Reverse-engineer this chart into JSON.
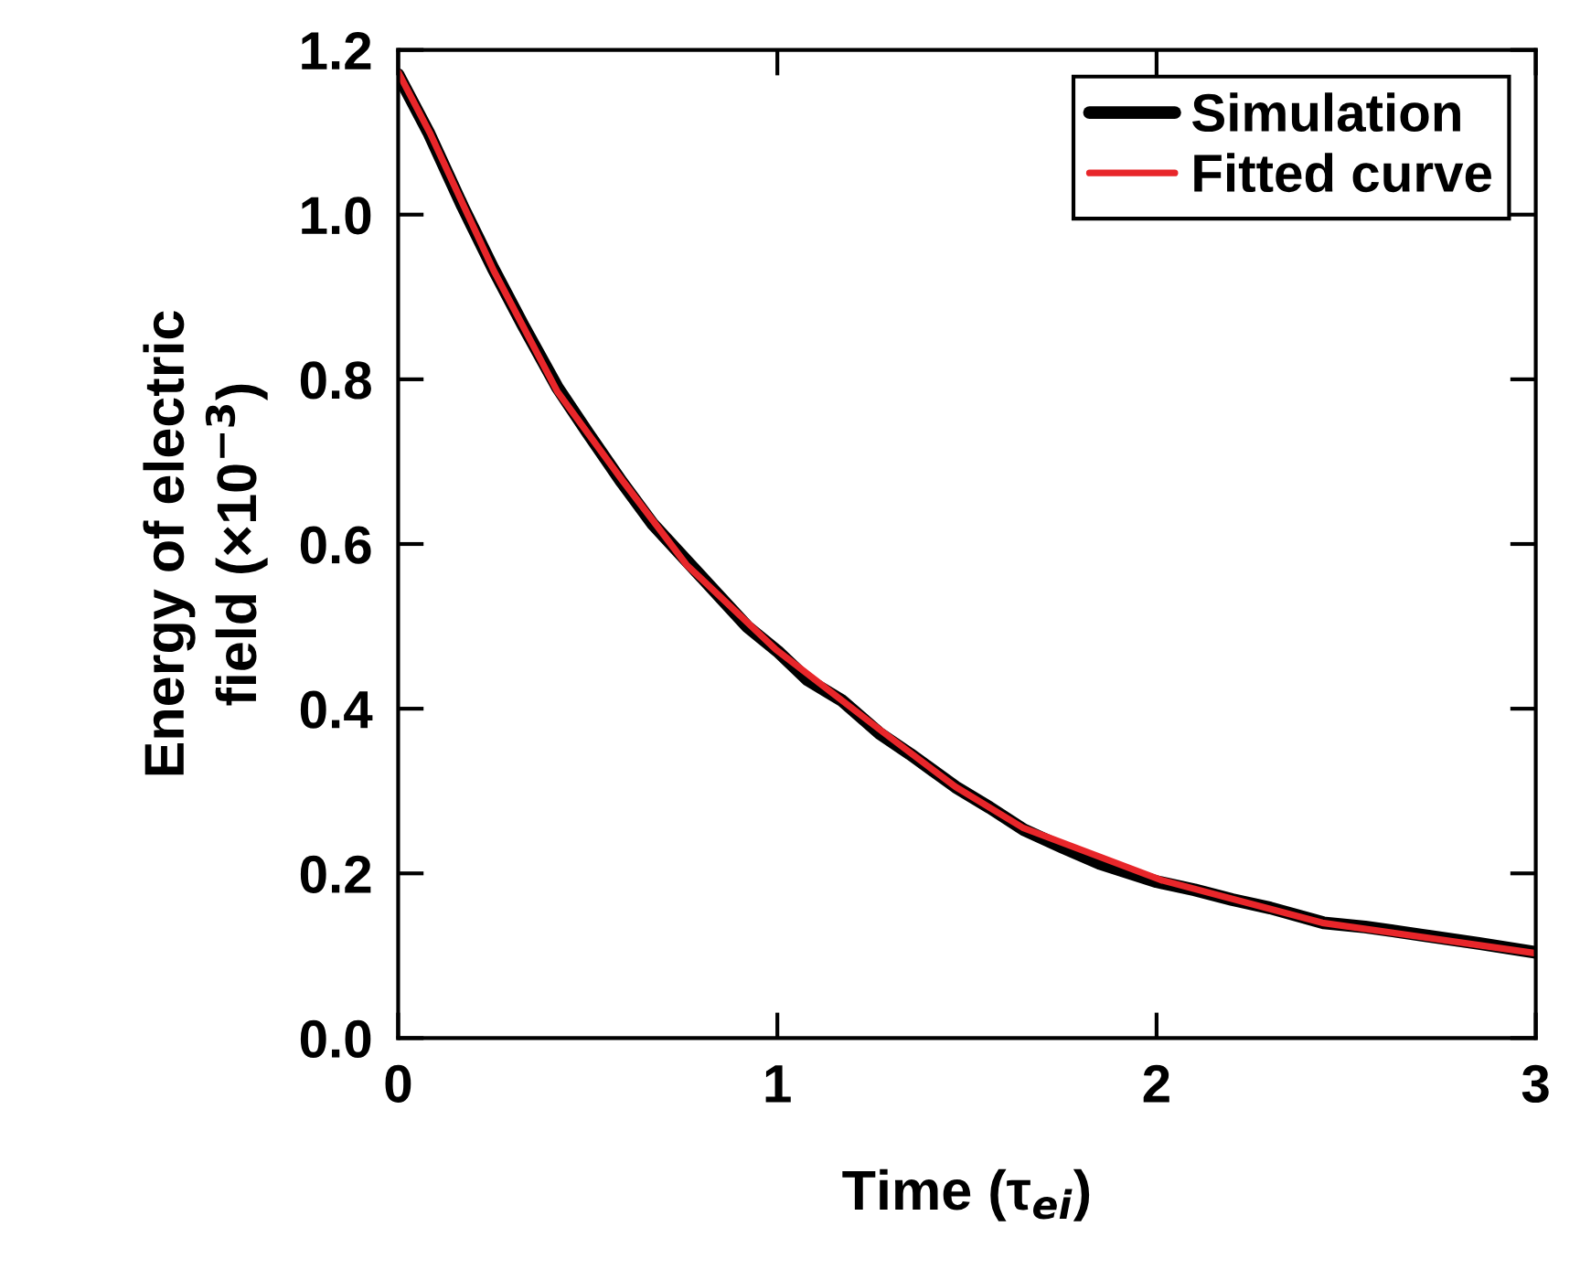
{
  "chart_data": {
    "type": "line",
    "xlabel": "Time (τ$_{ei}$)",
    "ylabel": "Energy of electric\nfield (×10$^{−3}$)",
    "xlim": [
      0,
      3
    ],
    "ylim": [
      0,
      1.2
    ],
    "xticks": [
      0,
      1,
      2,
      3
    ],
    "yticks": [
      {
        "value": 0,
        "label": "0.0"
      },
      0.2,
      0.4,
      0.6,
      0.8,
      {
        "value": 1,
        "label": "1.0"
      },
      1.2
    ],
    "grid": false,
    "legend": "top right",
    "marker": "none",
    "line_style": "solid",
    "series": [
      {
        "name": "Simulation",
        "color": "#000000",
        "x": [
          0,
          0.08,
          0.17,
          0.25,
          0.33,
          0.42,
          0.5,
          0.59,
          0.67,
          0.76,
          0.85,
          0.92,
          1.0,
          1.08,
          1.17,
          1.27,
          1.35,
          1.47,
          1.56,
          1.65,
          1.75,
          1.85,
          2.0,
          2.1,
          2.2,
          2.3,
          2.44,
          2.55,
          2.7,
          2.85,
          3.0
        ],
        "values": [
          1.17,
          1.1,
          1.01,
          0.935,
          0.865,
          0.79,
          0.735,
          0.675,
          0.625,
          0.58,
          0.535,
          0.5,
          0.47,
          0.435,
          0.41,
          0.37,
          0.345,
          0.305,
          0.28,
          0.253,
          0.232,
          0.212,
          0.19,
          0.18,
          0.168,
          0.158,
          0.14,
          0.135,
          0.125,
          0.115,
          0.104
        ]
      },
      {
        "name": "Fitted curve",
        "color": "#e8262a",
        "x": [
          0,
          0.084,
          0.252,
          0.42,
          0.59,
          0.76,
          0.996,
          1.266,
          1.47,
          1.649,
          2.011,
          2.437,
          3.0
        ],
        "values": [
          1.173,
          1.099,
          0.932,
          0.785,
          0.678,
          0.575,
          0.472,
          0.376,
          0.305,
          0.255,
          0.192,
          0.14,
          0.103
        ]
      }
    ]
  }
}
